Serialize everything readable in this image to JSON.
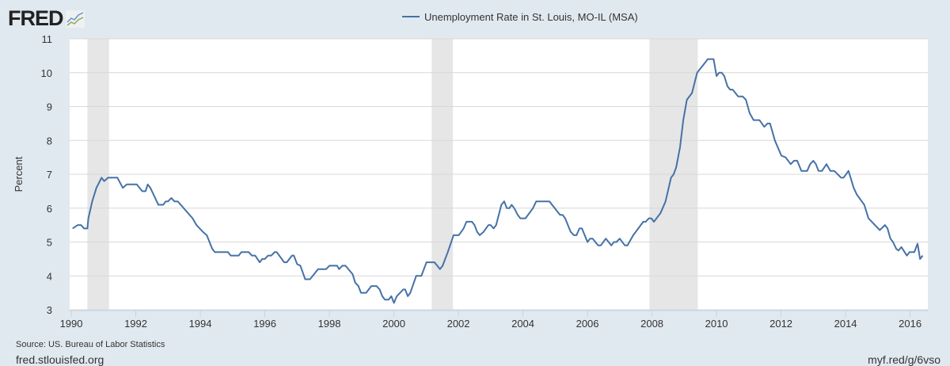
{
  "logo": {
    "text": "FRED"
  },
  "footer": {
    "source": "Source: US. Bureau of Labor Statistics",
    "site": "fred.stlouisfed.org",
    "short_url": "myf.red/g/6vso"
  },
  "colors": {
    "line": "#4572a7",
    "recession": "#e6e6e6",
    "background": "#e1e9f0",
    "grid": "#d8d8d8"
  },
  "chart_data": {
    "type": "line",
    "title": "",
    "xlabel": "",
    "ylabel": "Percent",
    "xlim": [
      1989.95,
      2016.55
    ],
    "ylim": [
      3,
      11
    ],
    "grid": true,
    "legend_placement": "top-center",
    "x_ticks": [
      "1990",
      "1992",
      "1994",
      "1996",
      "1998",
      "2000",
      "2002",
      "2004",
      "2006",
      "2008",
      "2010",
      "2012",
      "2014",
      "2016"
    ],
    "y_ticks": [
      "3",
      "4",
      "5",
      "6",
      "7",
      "8",
      "9",
      "10",
      "11"
    ],
    "recessions": [
      [
        1990.5,
        1991.17
      ],
      [
        2001.17,
        2001.83
      ],
      [
        2007.92,
        2009.42
      ]
    ],
    "series": [
      {
        "name": "Unemployment Rate in St. Louis, MO-IL (MSA)",
        "x": [
          1990.04,
          1990.2,
          1990.3,
          1990.4,
          1990.5,
          1990.53,
          1990.65,
          1990.78,
          1990.94,
          1991.02,
          1991.14,
          1991.43,
          1991.54,
          1991.6,
          1991.72,
          1992.03,
          1992.2,
          1992.3,
          1992.37,
          1992.45,
          1992.65,
          1992.7,
          1992.85,
          1992.93,
          1993.0,
          1993.1,
          1993.2,
          1993.3,
          1993.76,
          1993.88,
          1994.08,
          1994.2,
          1994.37,
          1994.45,
          1994.86,
          1994.94,
          1995.19,
          1995.27,
          1995.5,
          1995.6,
          1995.7,
          1995.84,
          1995.92,
          1996.0,
          1996.1,
          1996.2,
          1996.3,
          1996.37,
          1996.6,
          1996.68,
          1996.84,
          1996.9,
          1997.0,
          1997.1,
          1997.25,
          1997.4,
          1997.65,
          1997.9,
          1998.0,
          1998.24,
          1998.3,
          1998.4,
          1998.5,
          1998.72,
          1998.8,
          1998.9,
          1998.98,
          1999.14,
          1999.3,
          1999.46,
          1999.56,
          1999.64,
          1999.72,
          1999.84,
          1999.92,
          2000.0,
          2000.09,
          2000.29,
          2000.35,
          2000.43,
          2000.51,
          2000.69,
          2000.85,
          2001.01,
          2001.26,
          2001.43,
          2001.51,
          2001.67,
          2001.85,
          2002.01,
          2002.16,
          2002.25,
          2002.42,
          2002.5,
          2002.58,
          2002.66,
          2002.78,
          2002.93,
          2003.0,
          2003.09,
          2003.17,
          2003.33,
          2003.42,
          2003.5,
          2003.58,
          2003.65,
          2003.73,
          2003.84,
          2003.92,
          2004.08,
          2004.31,
          2004.41,
          2004.82,
          2005.15,
          2005.23,
          2005.31,
          2005.48,
          2005.58,
          2005.66,
          2005.75,
          2005.83,
          2006.0,
          2006.08,
          2006.16,
          2006.33,
          2006.41,
          2006.57,
          2006.74,
          2006.82,
          2006.9,
          2007.0,
          2007.16,
          2007.24,
          2007.42,
          2007.73,
          2007.81,
          2007.9,
          2007.98,
          2008.06,
          2008.26,
          2008.42,
          2008.59,
          2008.67,
          2008.75,
          2008.87,
          2008.97,
          2009.08,
          2009.24,
          2009.4,
          2009.73,
          2009.91,
          2010.0,
          2010.08,
          2010.16,
          2010.24,
          2010.34,
          2010.42,
          2010.5,
          2010.67,
          2010.81,
          2010.91,
          2011.03,
          2011.15,
          2011.33,
          2011.48,
          2011.58,
          2011.66,
          2011.81,
          2012.01,
          2012.14,
          2012.3,
          2012.4,
          2012.5,
          2012.63,
          2012.81,
          2012.9,
          2013.0,
          2013.08,
          2013.16,
          2013.27,
          2013.41,
          2013.53,
          2013.65,
          2013.86,
          2013.94,
          2014.09,
          2014.25,
          2014.35,
          2014.58,
          2014.71,
          2015.06,
          2015.22,
          2015.3,
          2015.39,
          2015.47,
          2015.57,
          2015.64,
          2015.73,
          2015.9,
          2015.98,
          2016.13,
          2016.23,
          2016.31,
          2016.39
        ],
        "values": [
          5.4,
          5.5,
          5.5,
          5.4,
          5.4,
          5.7,
          6.2,
          6.6,
          6.9,
          6.8,
          6.9,
          6.9,
          6.7,
          6.6,
          6.7,
          6.7,
          6.5,
          6.5,
          6.7,
          6.6,
          6.2,
          6.1,
          6.1,
          6.2,
          6.2,
          6.3,
          6.2,
          6.2,
          5.7,
          5.5,
          5.3,
          5.2,
          4.8,
          4.7,
          4.7,
          4.6,
          4.6,
          4.7,
          4.7,
          4.6,
          4.6,
          4.4,
          4.5,
          4.5,
          4.6,
          4.6,
          4.7,
          4.7,
          4.4,
          4.4,
          4.6,
          4.6,
          4.35,
          4.3,
          3.9,
          3.9,
          4.2,
          4.2,
          4.3,
          4.3,
          4.2,
          4.3,
          4.3,
          4.05,
          3.8,
          3.7,
          3.5,
          3.5,
          3.7,
          3.7,
          3.6,
          3.4,
          3.3,
          3.3,
          3.4,
          3.2,
          3.4,
          3.6,
          3.6,
          3.4,
          3.5,
          4.0,
          4.0,
          4.4,
          4.4,
          4.2,
          4.3,
          4.7,
          5.2,
          5.2,
          5.4,
          5.6,
          5.6,
          5.5,
          5.3,
          5.2,
          5.3,
          5.5,
          5.5,
          5.4,
          5.5,
          6.1,
          6.2,
          6.0,
          6.0,
          6.1,
          6.0,
          5.8,
          5.7,
          5.7,
          6.0,
          6.2,
          6.2,
          5.8,
          5.8,
          5.7,
          5.3,
          5.2,
          5.2,
          5.4,
          5.4,
          5.0,
          5.1,
          5.1,
          4.9,
          4.9,
          5.1,
          4.9,
          5.0,
          5.0,
          5.1,
          4.9,
          4.9,
          5.2,
          5.6,
          5.6,
          5.7,
          5.7,
          5.6,
          5.85,
          6.2,
          6.9,
          7.0,
          7.2,
          7.8,
          8.6,
          9.2,
          9.4,
          10.0,
          10.4,
          10.4,
          9.9,
          10.0,
          10.0,
          9.9,
          9.6,
          9.5,
          9.5,
          9.3,
          9.3,
          9.2,
          8.8,
          8.6,
          8.6,
          8.4,
          8.5,
          8.5,
          8.0,
          7.55,
          7.5,
          7.3,
          7.4,
          7.4,
          7.1,
          7.1,
          7.3,
          7.4,
          7.3,
          7.1,
          7.1,
          7.3,
          7.1,
          7.1,
          6.9,
          6.9,
          7.1,
          6.6,
          6.4,
          6.1,
          5.7,
          5.35,
          5.5,
          5.4,
          5.1,
          5.0,
          4.8,
          4.75,
          4.85,
          4.6,
          4.7,
          4.7,
          4.95,
          4.5,
          4.6
        ]
      }
    ]
  }
}
